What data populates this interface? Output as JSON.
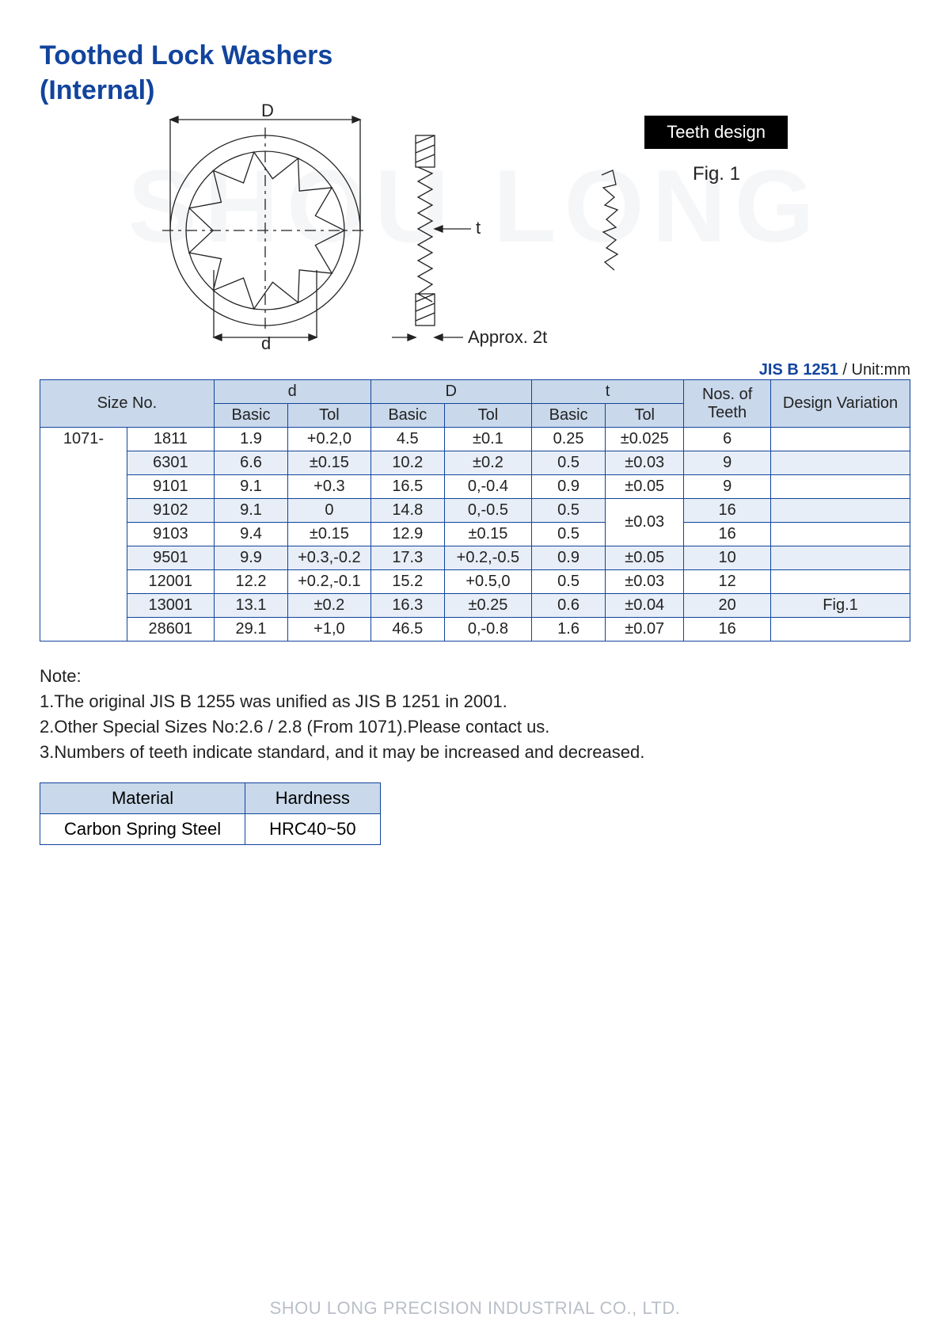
{
  "title_line1": "Toothed Lock Washers",
  "title_line2": "(Internal)",
  "watermark": "SHOU LONG",
  "diagram": {
    "D_label": "D",
    "d_label": "d",
    "t_label": "t",
    "approx_label": "Approx. 2t",
    "teeth_design_label": "Teeth design",
    "fig_label": "Fig. 1"
  },
  "standard": "JIS B 1251",
  "unit_label": " / Unit:mm",
  "headers": {
    "size": "Size No.",
    "d": "d",
    "D": "D",
    "t": "t",
    "basic": "Basic",
    "tol": "Tol",
    "teeth": "Nos. of Teeth",
    "variation": "Design Variation"
  },
  "prefix": "1071-",
  "rows": [
    {
      "code": "1811",
      "dBasic": "1.9",
      "dTol": "+0.2,0",
      "DBasic": "4.5",
      "DTol": "±0.1",
      "tBasic": "0.25",
      "tTol": "±0.025",
      "teeth": "6",
      "var": ""
    },
    {
      "code": "6301",
      "dBasic": "6.6",
      "dTol": "±0.15",
      "DBasic": "10.2",
      "DTol": "±0.2",
      "tBasic": "0.5",
      "tTol": "±0.03",
      "teeth": "9",
      "var": ""
    },
    {
      "code": "9101",
      "dBasic": "9.1",
      "dTol": "+0.3",
      "DBasic": "16.5",
      "DTol": "0,-0.4",
      "tBasic": "0.9",
      "tTol": "±0.05",
      "teeth": "9",
      "var": ""
    },
    {
      "code": "9102",
      "dBasic": "9.1",
      "dTol": "0",
      "DBasic": "14.8",
      "DTol": "0,-0.5",
      "tBasic": "0.5",
      "tTol": "±0.03",
      "teeth": "16",
      "var": "",
      "tTolSpan": 2
    },
    {
      "code": "9103",
      "dBasic": "9.4",
      "dTol": "±0.15",
      "DBasic": "12.9",
      "DTol": "±0.15",
      "tBasic": "0.5",
      "teeth": "16",
      "var": ""
    },
    {
      "code": "9501",
      "dBasic": "9.9",
      "dTol": "+0.3,-0.2",
      "DBasic": "17.3",
      "DTol": "+0.2,-0.5",
      "tBasic": "0.9",
      "tTol": "±0.05",
      "teeth": "10",
      "var": ""
    },
    {
      "code": "12001",
      "dBasic": "12.2",
      "dTol": "+0.2,-0.1",
      "DBasic": "15.2",
      "DTol": "+0.5,0",
      "tBasic": "0.5",
      "tTol": "±0.03",
      "teeth": "12",
      "var": ""
    },
    {
      "code": "13001",
      "dBasic": "13.1",
      "dTol": "±0.2",
      "DBasic": "16.3",
      "DTol": "±0.25",
      "tBasic": "0.6",
      "tTol": "±0.04",
      "teeth": "20",
      "var": "Fig.1"
    },
    {
      "code": "28601",
      "dBasic": "29.1",
      "dTol": "+1,0",
      "DBasic": "46.5",
      "DTol": "0,-0.8",
      "tBasic": "1.6",
      "tTol": "±0.07",
      "teeth": "16",
      "var": ""
    }
  ],
  "notes_title": "Note:",
  "notes": [
    "1.The original JIS B 1255 was unified as JIS B 1251 in 2001.",
    "2.Other Special Sizes No:2.6 / 2.8 (From 1071).Please contact us.",
    "3.Numbers of teeth indicate standard, and it may be increased and decreased."
  ],
  "material_table": {
    "h1": "Material",
    "h2": "Hardness",
    "c1": "Carbon Spring Steel",
    "c2": "HRC40~50"
  },
  "footer": "SHOU LONG PRECISION INDUSTRIAL CO., LTD.",
  "colors": {
    "brand": "#12449d",
    "header_bg": "#c9d8ea",
    "row_even_bg": "#e7eef7"
  },
  "col_widths_pct": [
    10,
    10,
    8.5,
    9.5,
    8.5,
    10,
    8.5,
    9,
    10,
    16
  ]
}
